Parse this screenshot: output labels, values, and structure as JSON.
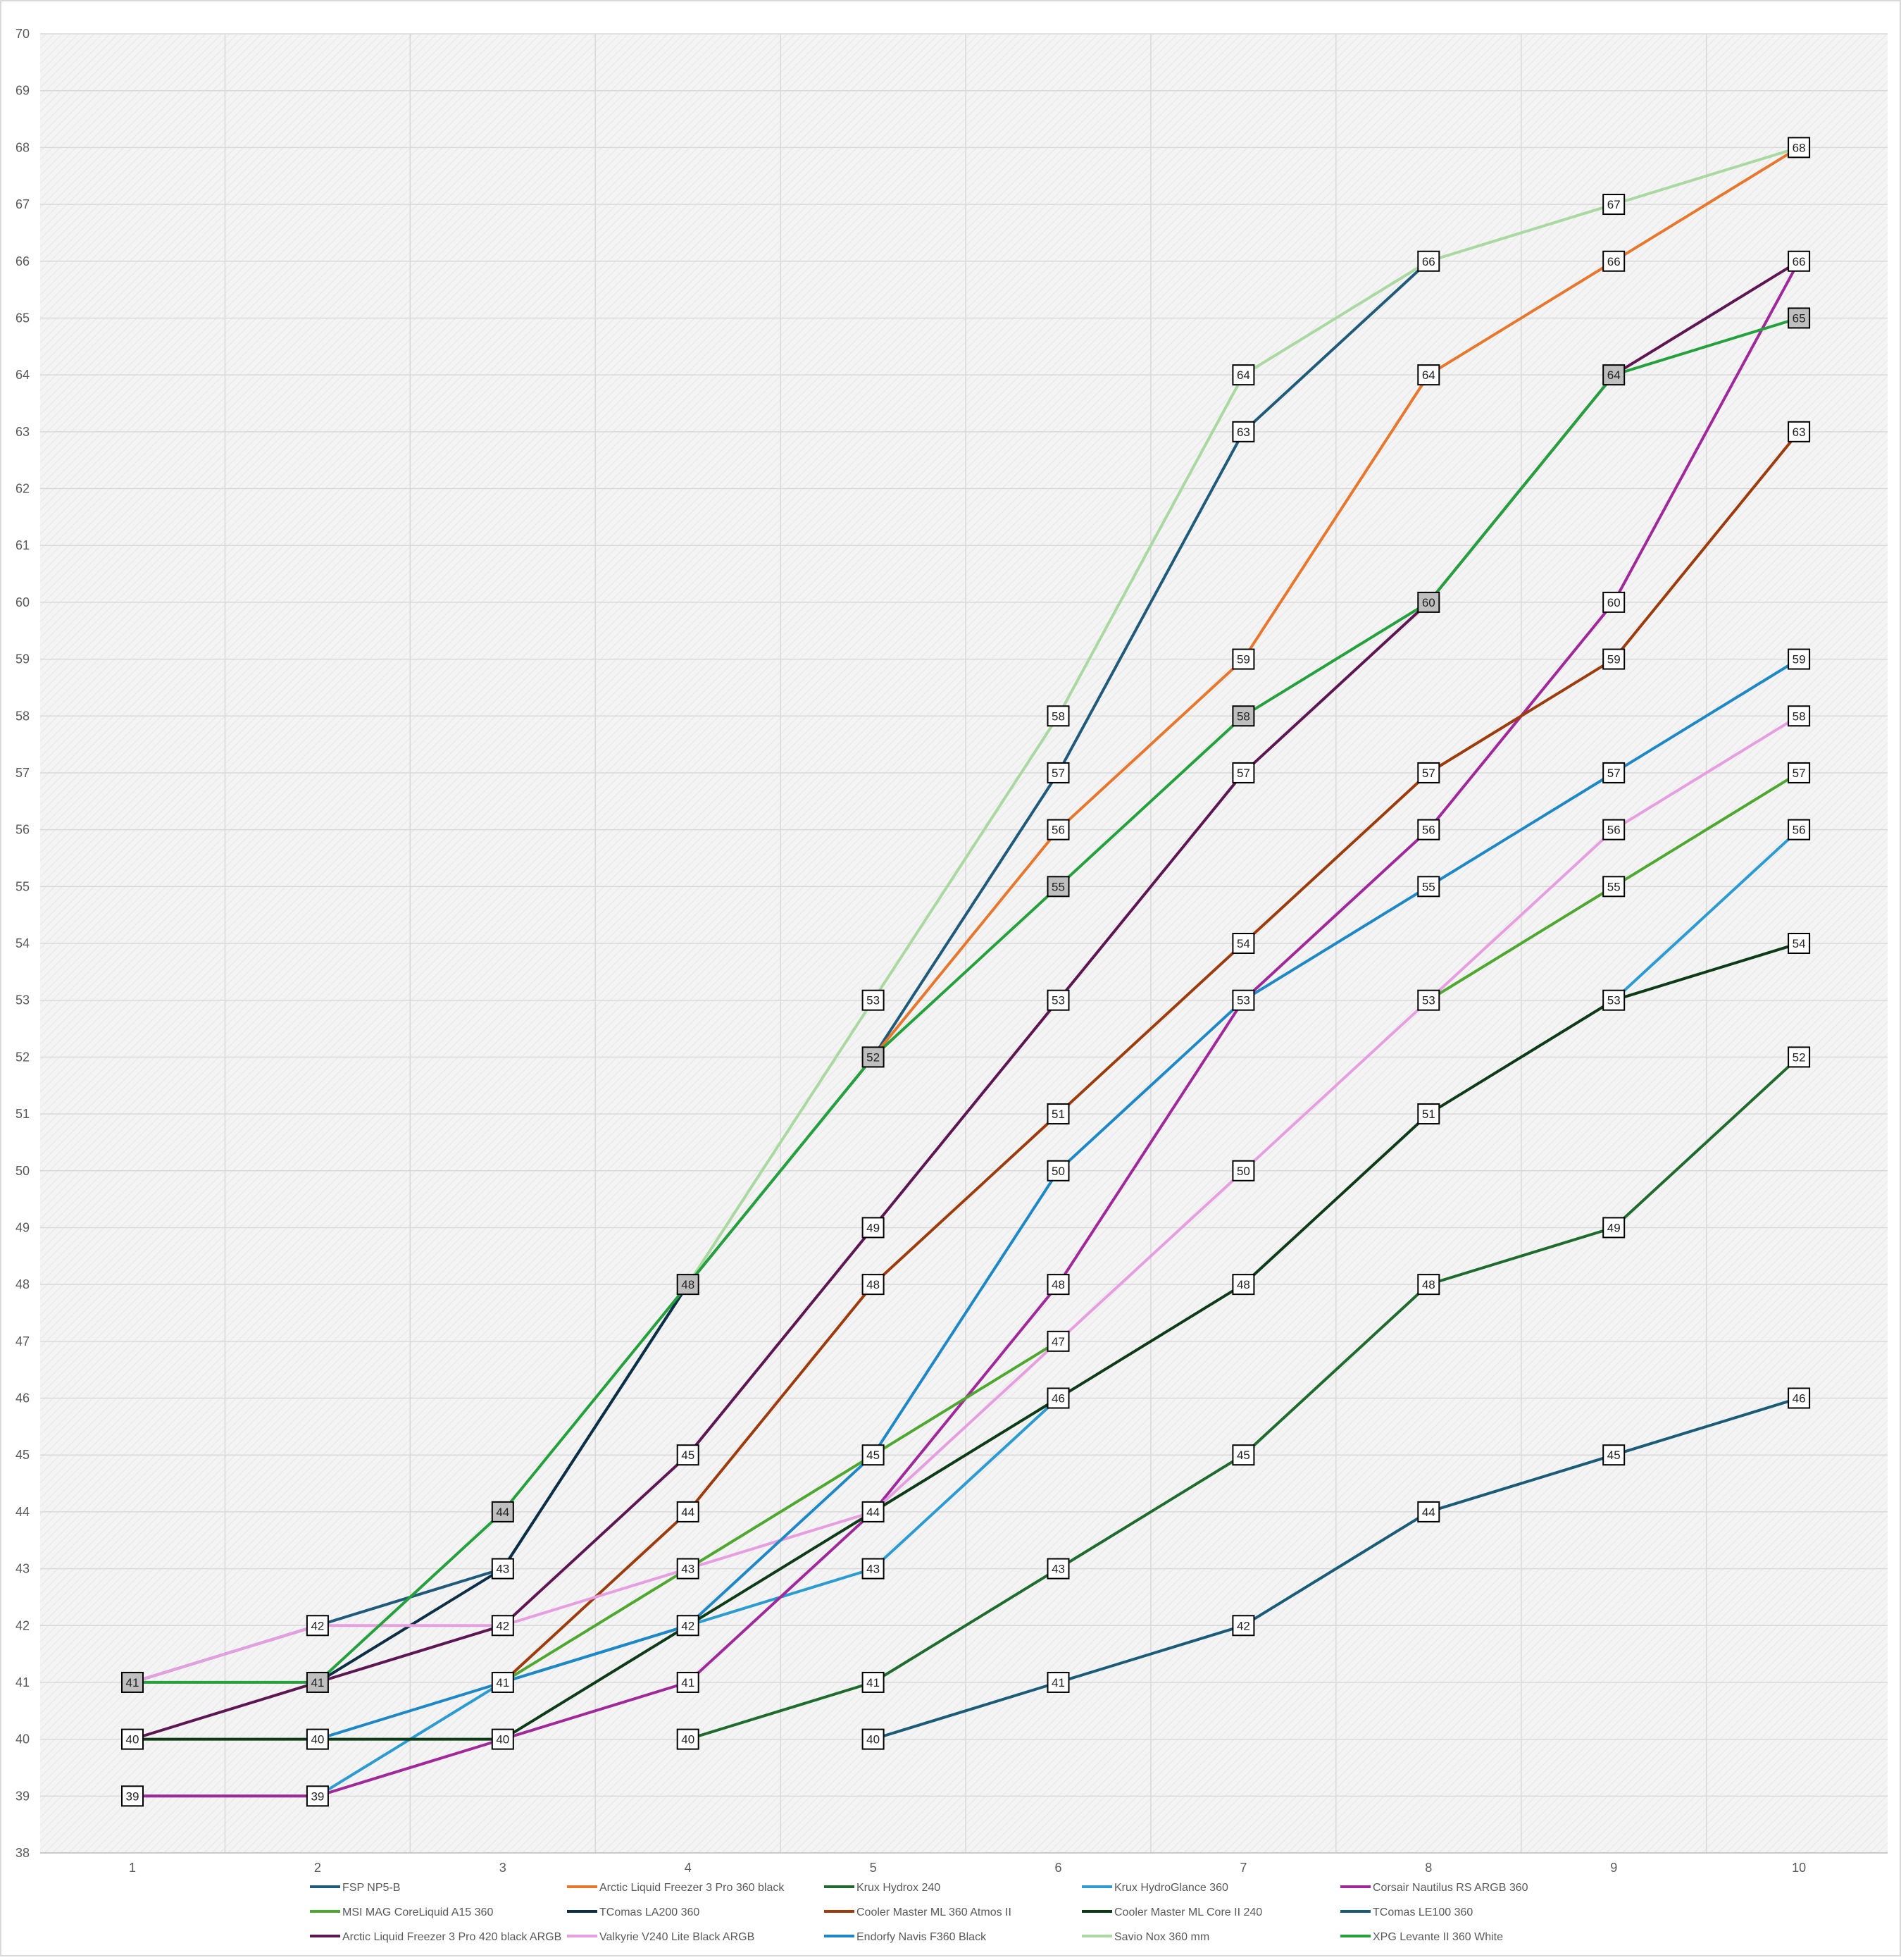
{
  "chart_data": {
    "type": "line",
    "title": "",
    "xlabel": "",
    "ylabel": "",
    "x": [
      1,
      2,
      3,
      4,
      5,
      6,
      7,
      8,
      9,
      10
    ],
    "ylim": [
      38,
      70
    ],
    "yticks": [
      38,
      39,
      40,
      41,
      42,
      43,
      44,
      45,
      46,
      47,
      48,
      49,
      50,
      51,
      52,
      53,
      54,
      55,
      56,
      57,
      58,
      59,
      60,
      61,
      62,
      63,
      64,
      65,
      66,
      67,
      68,
      69,
      70
    ],
    "grid": true,
    "legend_position": "bottom",
    "series": [
      {
        "name": "FSP NP5-B",
        "color": "#1f5a7a",
        "values": [
          41,
          42,
          43,
          48,
          52,
          57,
          63,
          66,
          null,
          null
        ]
      },
      {
        "name": "Arctic Liquid Freezer 3 Pro 360 black",
        "color": "#e8772e",
        "values": [
          null,
          null,
          null,
          null,
          52,
          56,
          59,
          64,
          66,
          68
        ]
      },
      {
        "name": "Krux Hydrox 240",
        "color": "#1e6b2d",
        "values": [
          null,
          null,
          null,
          40,
          41,
          43,
          45,
          48,
          49,
          52
        ]
      },
      {
        "name": "Krux HydroGlance 360",
        "color": "#2b9bd1",
        "values": [
          39,
          39,
          41,
          42,
          43,
          46,
          null,
          null,
          53,
          56
        ]
      },
      {
        "name": "Corsair  Nautilus RS ARGB 360",
        "color": "#a0289b",
        "values": [
          39,
          39,
          40,
          41,
          44,
          48,
          53,
          56,
          60,
          66
        ]
      },
      {
        "name": "MSI MAG CoreLiquid A15 360",
        "color": "#4ea72e",
        "values": [
          null,
          null,
          41,
          43,
          45,
          47,
          null,
          53,
          55,
          57
        ]
      },
      {
        "name": "TComas LA200 360",
        "color": "#0c2f47",
        "values": [
          null,
          41,
          43,
          48,
          null,
          null,
          null,
          null,
          null,
          null
        ]
      },
      {
        "name": "Cooler Master ML 360 Atmos II",
        "color": "#9c3c0c",
        "values": [
          null,
          null,
          41,
          44,
          48,
          51,
          54,
          57,
          59,
          63
        ]
      },
      {
        "name": "Cooler Master ML Core II 240",
        "color": "#0e3b17",
        "values": [
          40,
          40,
          40,
          42,
          44,
          46,
          48,
          51,
          53,
          54
        ]
      },
      {
        "name": "TComas LE100 360",
        "color": "#1a5c78",
        "values": [
          null,
          null,
          null,
          null,
          40,
          41,
          42,
          44,
          45,
          46
        ]
      },
      {
        "name": "Arctic Liquid Freezer 3 Pro 420 black ARGB",
        "color": "#5e1653",
        "values": [
          40,
          41,
          42,
          45,
          49,
          53,
          57,
          60,
          64,
          66
        ]
      },
      {
        "name": "Valkyrie V240 Lite Black ARGB",
        "color": "#e79ee0",
        "values": [
          41,
          42,
          42,
          43,
          44,
          47,
          50,
          53,
          56,
          58
        ]
      },
      {
        "name": "Endorfy Navis F360 Black",
        "color": "#1e88c7",
        "values": [
          null,
          40,
          41,
          42,
          45,
          50,
          53,
          55,
          57,
          59
        ]
      },
      {
        "name": "Savio Nox 360 mm",
        "color": "#a9d8a0",
        "values": [
          null,
          null,
          null,
          48,
          53,
          58,
          64,
          66,
          67,
          68
        ]
      },
      {
        "name": "XPG Levante II 360 White",
        "color": "#24a03c",
        "values": [
          41,
          41,
          44,
          48,
          52,
          55,
          58,
          60,
          64,
          65
        ]
      }
    ],
    "data_labels": [
      {
        "x": 1,
        "y": 41,
        "text": "41",
        "shaded": true
      },
      {
        "x": 1,
        "y": 40,
        "text": "40",
        "shaded": false
      },
      {
        "x": 1,
        "y": 39,
        "text": "39",
        "shaded": false
      },
      {
        "x": 2,
        "y": 42,
        "text": "42",
        "shaded": false
      },
      {
        "x": 2,
        "y": 41,
        "text": "41",
        "shaded": true
      },
      {
        "x": 2,
        "y": 40,
        "text": "40",
        "shaded": false
      },
      {
        "x": 2,
        "y": 39,
        "text": "39",
        "shaded": false
      },
      {
        "x": 3,
        "y": 44,
        "text": "44",
        "shaded": true
      },
      {
        "x": 3,
        "y": 43,
        "text": "43",
        "shaded": false
      },
      {
        "x": 3,
        "y": 42,
        "text": "42",
        "shaded": false
      },
      {
        "x": 3,
        "y": 41,
        "text": "41",
        "shaded": false
      },
      {
        "x": 3,
        "y": 40,
        "text": "40",
        "shaded": false
      },
      {
        "x": 4,
        "y": 48,
        "text": "48",
        "shaded": true
      },
      {
        "x": 4,
        "y": 45,
        "text": "45",
        "shaded": false
      },
      {
        "x": 4,
        "y": 44,
        "text": "44",
        "shaded": false
      },
      {
        "x": 4,
        "y": 43,
        "text": "43",
        "shaded": false
      },
      {
        "x": 4,
        "y": 42,
        "text": "42",
        "shaded": false
      },
      {
        "x": 4,
        "y": 41,
        "text": "41",
        "shaded": false
      },
      {
        "x": 4,
        "y": 40,
        "text": "40",
        "shaded": false
      },
      {
        "x": 5,
        "y": 53,
        "text": "53",
        "shaded": false
      },
      {
        "x": 5,
        "y": 52,
        "text": "52",
        "shaded": true
      },
      {
        "x": 5,
        "y": 49,
        "text": "49",
        "shaded": false
      },
      {
        "x": 5,
        "y": 48,
        "text": "48",
        "shaded": false
      },
      {
        "x": 5,
        "y": 45,
        "text": "45",
        "shaded": false
      },
      {
        "x": 5,
        "y": 44,
        "text": "44",
        "shaded": false
      },
      {
        "x": 5,
        "y": 43,
        "text": "43",
        "shaded": false
      },
      {
        "x": 5,
        "y": 41,
        "text": "41",
        "shaded": false
      },
      {
        "x": 5,
        "y": 40,
        "text": "40",
        "shaded": false
      },
      {
        "x": 6,
        "y": 58,
        "text": "58",
        "shaded": false
      },
      {
        "x": 6,
        "y": 57,
        "text": "57",
        "shaded": false
      },
      {
        "x": 6,
        "y": 56,
        "text": "56",
        "shaded": false
      },
      {
        "x": 6,
        "y": 55,
        "text": "55",
        "shaded": true
      },
      {
        "x": 6,
        "y": 53,
        "text": "53",
        "shaded": false
      },
      {
        "x": 6,
        "y": 51,
        "text": "51",
        "shaded": false
      },
      {
        "x": 6,
        "y": 50,
        "text": "50",
        "shaded": false
      },
      {
        "x": 6,
        "y": 48,
        "text": "48",
        "shaded": false
      },
      {
        "x": 6,
        "y": 47,
        "text": "47",
        "shaded": false
      },
      {
        "x": 6,
        "y": 46,
        "text": "46",
        "shaded": false
      },
      {
        "x": 6,
        "y": 43,
        "text": "43",
        "shaded": false
      },
      {
        "x": 6,
        "y": 41,
        "text": "41",
        "shaded": false
      },
      {
        "x": 7,
        "y": 64,
        "text": "64",
        "shaded": false
      },
      {
        "x": 7,
        "y": 63,
        "text": "63",
        "shaded": false
      },
      {
        "x": 7,
        "y": 59,
        "text": "59",
        "shaded": false
      },
      {
        "x": 7,
        "y": 58,
        "text": "58",
        "shaded": true
      },
      {
        "x": 7,
        "y": 57,
        "text": "57",
        "shaded": false
      },
      {
        "x": 7,
        "y": 54,
        "text": "54",
        "shaded": false
      },
      {
        "x": 7,
        "y": 53,
        "text": "53",
        "shaded": false
      },
      {
        "x": 7,
        "y": 50,
        "text": "50",
        "shaded": false
      },
      {
        "x": 7,
        "y": 48,
        "text": "48",
        "shaded": false
      },
      {
        "x": 7,
        "y": 45,
        "text": "45",
        "shaded": false
      },
      {
        "x": 7,
        "y": 42,
        "text": "42",
        "shaded": false
      },
      {
        "x": 8,
        "y": 66,
        "text": "66",
        "shaded": false
      },
      {
        "x": 8,
        "y": 64,
        "text": "64",
        "shaded": false
      },
      {
        "x": 8,
        "y": 60,
        "text": "60",
        "shaded": true
      },
      {
        "x": 8,
        "y": 57,
        "text": "57",
        "shaded": false
      },
      {
        "x": 8,
        "y": 56,
        "text": "56",
        "shaded": false
      },
      {
        "x": 8,
        "y": 55,
        "text": "55",
        "shaded": false
      },
      {
        "x": 8,
        "y": 53,
        "text": "53",
        "shaded": false
      },
      {
        "x": 8,
        "y": 51,
        "text": "51",
        "shaded": false
      },
      {
        "x": 8,
        "y": 48,
        "text": "48",
        "shaded": false
      },
      {
        "x": 8,
        "y": 44,
        "text": "44",
        "shaded": false
      },
      {
        "x": 9,
        "y": 67,
        "text": "67",
        "shaded": false
      },
      {
        "x": 9,
        "y": 66,
        "text": "66",
        "shaded": false
      },
      {
        "x": 9,
        "y": 64,
        "text": "64",
        "shaded": true
      },
      {
        "x": 9,
        "y": 60,
        "text": "60",
        "shaded": false
      },
      {
        "x": 9,
        "y": 59,
        "text": "59",
        "shaded": false
      },
      {
        "x": 9,
        "y": 57,
        "text": "57",
        "shaded": false
      },
      {
        "x": 9,
        "y": 56,
        "text": "56",
        "shaded": false
      },
      {
        "x": 9,
        "y": 55,
        "text": "55",
        "shaded": false
      },
      {
        "x": 9,
        "y": 53,
        "text": "53",
        "shaded": false
      },
      {
        "x": 9,
        "y": 49,
        "text": "49",
        "shaded": false
      },
      {
        "x": 9,
        "y": 45,
        "text": "45",
        "shaded": false
      },
      {
        "x": 10,
        "y": 68,
        "text": "68",
        "shaded": false
      },
      {
        "x": 10,
        "y": 66,
        "text": "66",
        "shaded": false
      },
      {
        "x": 10,
        "y": 65,
        "text": "65",
        "shaded": true
      },
      {
        "x": 10,
        "y": 63,
        "text": "63",
        "shaded": false
      },
      {
        "x": 10,
        "y": 59,
        "text": "59",
        "shaded": false
      },
      {
        "x": 10,
        "y": 58,
        "text": "58",
        "shaded": false
      },
      {
        "x": 10,
        "y": 57,
        "text": "57",
        "shaded": false
      },
      {
        "x": 10,
        "y": 56,
        "text": "56",
        "shaded": false
      },
      {
        "x": 10,
        "y": 54,
        "text": "54",
        "shaded": false
      },
      {
        "x": 10,
        "y": 52,
        "text": "52",
        "shaded": false
      },
      {
        "x": 10,
        "y": 46,
        "text": "46",
        "shaded": false
      }
    ],
    "colors": {
      "plot_background": "#f4f4f4",
      "gridline": "#d9d9d9",
      "label_box_fill": "#ffffff",
      "label_box_shaded_fill": "#bfbfbf",
      "label_box_border": "#000000"
    }
  }
}
